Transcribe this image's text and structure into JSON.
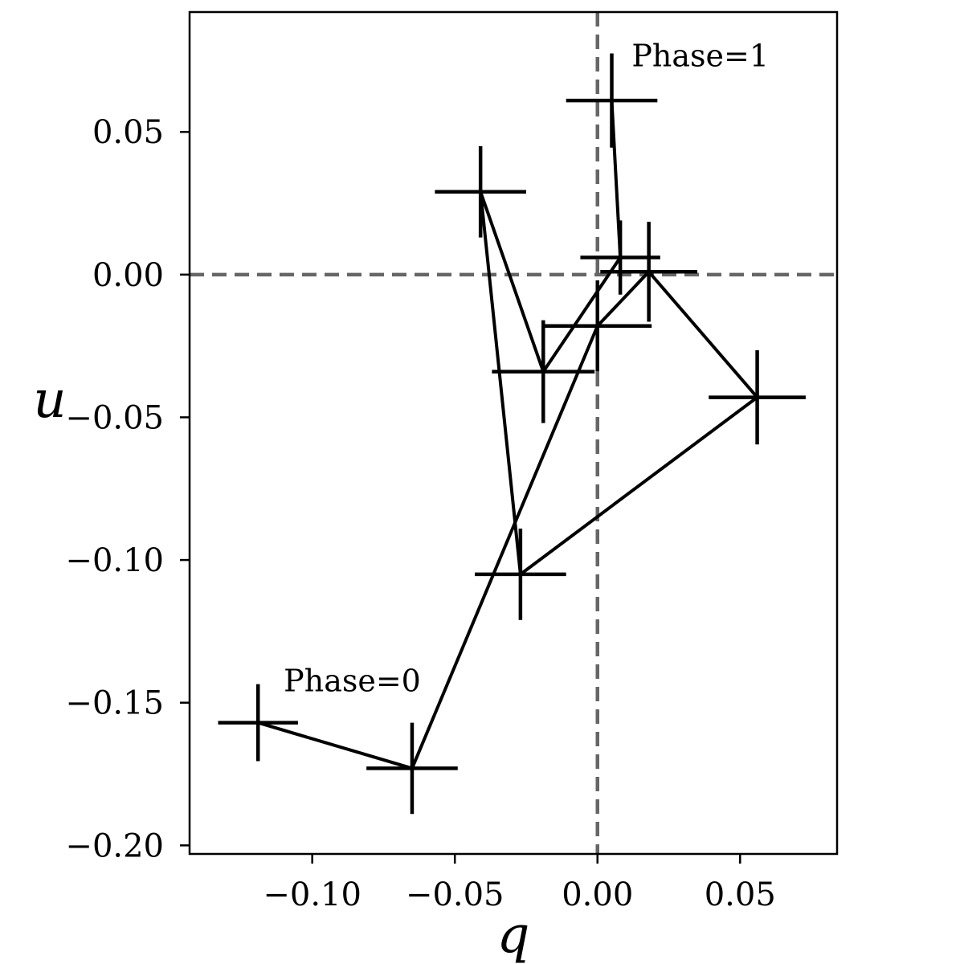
{
  "chart_data": {
    "type": "scatter",
    "title": "",
    "xlabel": "q",
    "ylabel": "u",
    "xlim": [
      -0.143,
      0.084
    ],
    "ylim": [
      -0.203,
      0.092
    ],
    "xticks": [
      -0.1,
      -0.05,
      0.0,
      0.05
    ],
    "xtick_labels": [
      "−0.10",
      "−0.05",
      "0.00",
      "0.05"
    ],
    "yticks": [
      -0.2,
      -0.15,
      -0.1,
      -0.05,
      0.0,
      0.05
    ],
    "ytick_labels": [
      "−0.20",
      "−0.15",
      "−0.10",
      "−0.05",
      "0.00",
      "0.05"
    ],
    "grid": false,
    "reference_lines": [
      {
        "orientation": "vertical",
        "value": 0.0,
        "style": "dashed",
        "color": "#666666"
      },
      {
        "orientation": "horizontal",
        "value": 0.0,
        "style": "dashed",
        "color": "#666666"
      }
    ],
    "series": [
      {
        "connected": true,
        "color": "#000000",
        "points": [
          {
            "x": -0.119,
            "y": -0.157,
            "xerr": 0.014,
            "yerr": 0.0135
          },
          {
            "x": -0.065,
            "y": -0.173,
            "xerr": 0.016,
            "yerr": 0.016
          },
          {
            "x": 0.0,
            "y": -0.018,
            "xerr": 0.019,
            "yerr": 0.016
          },
          {
            "x": 0.018,
            "y": 0.001,
            "xerr": 0.017,
            "yerr": 0.0175
          },
          {
            "x": 0.056,
            "y": -0.043,
            "xerr": 0.017,
            "yerr": 0.0165
          },
          {
            "x": -0.027,
            "y": -0.105,
            "xerr": 0.016,
            "yerr": 0.016
          },
          {
            "x": -0.041,
            "y": 0.029,
            "xerr": 0.016,
            "yerr": 0.016
          },
          {
            "x": -0.019,
            "y": -0.034,
            "xerr": 0.018,
            "yerr": 0.018
          },
          {
            "x": 0.008,
            "y": 0.006,
            "xerr": 0.014,
            "yerr": 0.013
          },
          {
            "x": 0.005,
            "y": 0.061,
            "xerr": 0.016,
            "yerr": 0.0165
          }
        ]
      }
    ],
    "annotations": [
      {
        "text": "Phase=0",
        "x": -0.11,
        "y": -0.146
      },
      {
        "text": "Phase=1",
        "x": 0.012,
        "y": 0.073
      }
    ]
  }
}
